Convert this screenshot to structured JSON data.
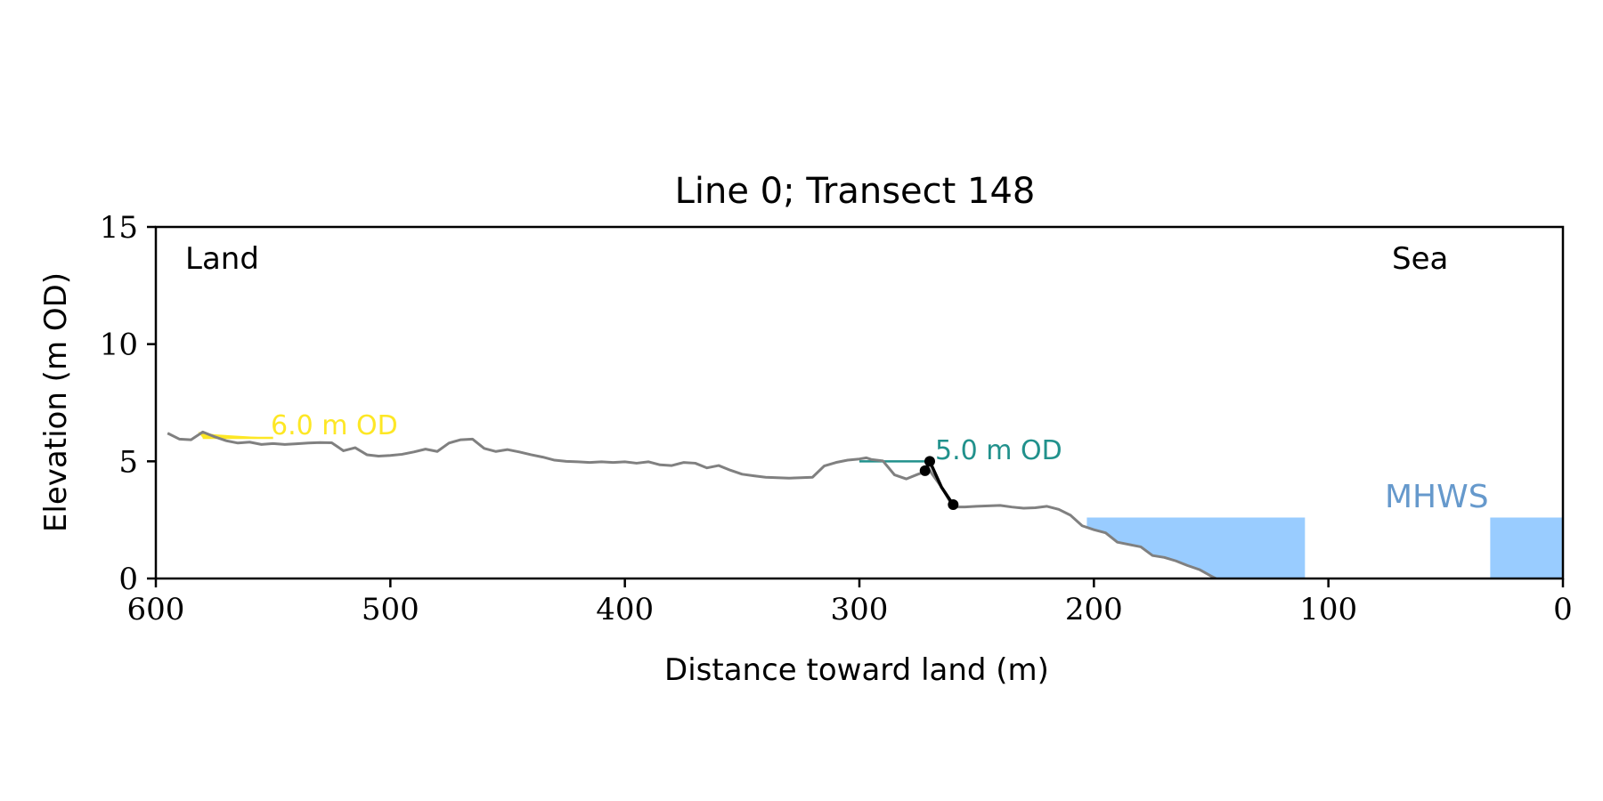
{
  "chart_data": {
    "type": "line",
    "title": "Line 0; Transect 148",
    "xlabel": "Distance toward land (m)",
    "ylabel": "Elevation (m OD)",
    "xlim": [
      600,
      0
    ],
    "ylim": [
      0,
      15
    ],
    "xticks": [
      600,
      500,
      400,
      300,
      200,
      100,
      0
    ],
    "yticks": [
      0,
      5,
      10,
      15
    ],
    "grid": false,
    "legend": "none",
    "corner_labels": {
      "left": "Land",
      "right": "Sea"
    },
    "profile": {
      "color": "#808080",
      "x": [
        595,
        590,
        585,
        580,
        575,
        570,
        565,
        560,
        555,
        550,
        545,
        540,
        535,
        530,
        525,
        520,
        515,
        510,
        505,
        500,
        495,
        490,
        485,
        480,
        475,
        470,
        465,
        460,
        455,
        450,
        445,
        440,
        435,
        430,
        425,
        420,
        415,
        410,
        405,
        400,
        395,
        390,
        385,
        380,
        375,
        370,
        365,
        360,
        355,
        350,
        345,
        340,
        335,
        330,
        325,
        320,
        315,
        310,
        305,
        300,
        297,
        295,
        290,
        285,
        280,
        275,
        272,
        270,
        265,
        260,
        255,
        250,
        245,
        240,
        235,
        230,
        225,
        220,
        215,
        210,
        205,
        200,
        195,
        190,
        185,
        180,
        175,
        170,
        165,
        160,
        155,
        150,
        148
      ],
      "y": [
        6.2,
        5.95,
        5.92,
        6.25,
        6.05,
        5.88,
        5.78,
        5.82,
        5.72,
        5.76,
        5.72,
        5.75,
        5.78,
        5.8,
        5.79,
        5.45,
        5.58,
        5.28,
        5.22,
        5.25,
        5.3,
        5.4,
        5.52,
        5.42,
        5.78,
        5.92,
        5.95,
        5.55,
        5.42,
        5.5,
        5.4,
        5.28,
        5.18,
        5.05,
        5.0,
        4.98,
        4.95,
        4.98,
        4.95,
        4.98,
        4.92,
        4.98,
        4.85,
        4.82,
        4.95,
        4.92,
        4.72,
        4.82,
        4.62,
        4.45,
        4.38,
        4.32,
        4.3,
        4.28,
        4.3,
        4.32,
        4.8,
        4.95,
        5.05,
        5.1,
        5.15,
        5.08,
        5.02,
        4.42,
        4.25,
        4.45,
        4.55,
        4.6,
        3.9,
        3.05,
        3.05,
        3.08,
        3.1,
        3.12,
        3.05,
        3.0,
        3.02,
        3.08,
        2.95,
        2.7,
        2.25,
        2.08,
        1.95,
        1.55,
        1.45,
        1.35,
        0.98,
        0.9,
        0.75,
        0.55,
        0.38,
        0.1,
        0.0
      ]
    },
    "cliff": {
      "color": "#000000",
      "x": [
        272,
        270,
        265,
        260
      ],
      "y": [
        4.6,
        5.0,
        3.9,
        3.15
      ],
      "markers": [
        {
          "x": 272,
          "y": 4.6
        },
        {
          "x": 270,
          "y": 5.0
        },
        {
          "x": 260,
          "y": 3.15
        }
      ]
    },
    "reference_levels": [
      {
        "label": "6.0 m OD",
        "color": "#FDE725",
        "value": 6.0,
        "x_start": 580,
        "x_end": 550
      },
      {
        "label": "5.0 m OD",
        "color": "#21918C",
        "value": 5.0,
        "x_start": 300,
        "x_end": 270
      }
    ],
    "mhws": {
      "label": "MHWS",
      "color": "#99CCFF",
      "label_color": "#6699CC",
      "value": 2.6,
      "regions": [
        {
          "x_start": 203,
          "x_end": 110
        },
        {
          "x_start": 31,
          "x_end": 0
        }
      ]
    }
  }
}
